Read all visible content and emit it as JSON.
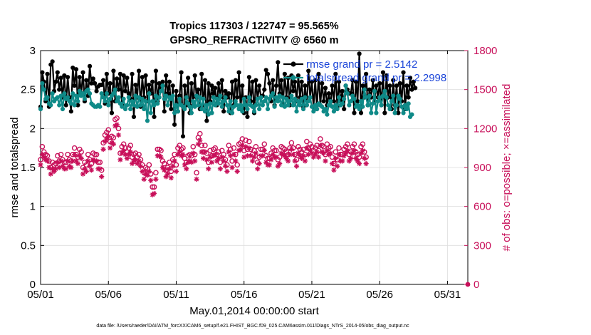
{
  "chart_data": {
    "type": "line",
    "title_line1": "Tropics 117303 / 122747 = 95.565%",
    "title_line2": "GPSRO_REFRACTIVITY @ 6560 m",
    "xlabel": "May.01,2014 00:00:00 start",
    "ylabel_left": "rmse and totalspread",
    "ylabel_right": "# of obs: o=possible; ×=assimilated",
    "xlim": [
      0,
      31.5
    ],
    "ylim_left": [
      0,
      3
    ],
    "ylim_right": [
      0,
      1800
    ],
    "x_ticks": [
      {
        "value": 0,
        "label": "05/01"
      },
      {
        "value": 5,
        "label": "05/06"
      },
      {
        "value": 10,
        "label": "05/11"
      },
      {
        "value": 15,
        "label": "05/16"
      },
      {
        "value": 20,
        "label": "05/21"
      },
      {
        "value": 25,
        "label": "05/26"
      },
      {
        "value": 30,
        "label": "05/31"
      }
    ],
    "y_ticks_left": [
      {
        "value": 0,
        "label": "0"
      },
      {
        "value": 0.5,
        "label": "0.5"
      },
      {
        "value": 1,
        "label": "1"
      },
      {
        "value": 1.5,
        "label": "1.5"
      },
      {
        "value": 2,
        "label": "2"
      },
      {
        "value": 2.5,
        "label": "2.5"
      },
      {
        "value": 3,
        "label": "3"
      }
    ],
    "y_ticks_right": [
      {
        "value": 0,
        "label": "0"
      },
      {
        "value": 300,
        "label": "300"
      },
      {
        "value": 600,
        "label": "600"
      },
      {
        "value": 900,
        "label": "900"
      },
      {
        "value": 1200,
        "label": "1200"
      },
      {
        "value": 1500,
        "label": "1500"
      },
      {
        "value": 1800,
        "label": "1800"
      }
    ],
    "x_step_days": 0.125,
    "series": [
      {
        "name": "rmse",
        "legend": "rmse grand pr = 2.5142",
        "axis": "left",
        "color": "#000000",
        "marker": "filled-circle",
        "values": [
          2.28,
          2.72,
          2.6,
          2.35,
          2.7,
          2.28,
          2.82,
          2.86,
          2.48,
          2.6,
          2.72,
          2.5,
          2.65,
          2.4,
          2.68,
          2.3,
          2.66,
          2.4,
          2.22,
          2.78,
          2.55,
          2.76,
          2.3,
          2.66,
          2.45,
          2.72,
          2.35,
          2.62,
          2.42,
          2.8,
          2.58,
          2.64,
          2.58,
          2.48,
          2.54,
          2.56,
          2.56,
          2.62,
          2.32,
          2.7,
          2.45,
          2.58,
          2.2,
          2.74,
          2.35,
          2.64,
          2.5,
          2.7,
          2.3,
          2.68,
          2.48,
          2.65,
          2.45,
          2.38,
          2.7,
          2.15,
          2.56,
          2.4,
          2.74,
          2.28,
          2.66,
          2.4,
          2.68,
          2.35,
          2.56,
          2.45,
          2.6,
          2.15,
          2.74,
          2.35,
          2.58,
          2.5,
          2.6,
          2.22,
          2.68,
          2.45,
          2.6,
          2.25,
          2.55,
          2.05,
          2.48,
          2.22,
          2.42,
          2.72,
          1.9,
          2.55,
          2.3,
          2.65,
          2.2,
          2.58,
          2.3,
          2.68,
          2.4,
          2.5,
          2.25,
          2.7,
          2.3,
          2.62,
          2.1,
          2.58,
          2.35,
          2.55,
          2.45,
          2.52,
          2.3,
          2.58,
          2.4,
          2.62,
          2.22,
          2.48,
          2.4,
          2.45,
          2.2,
          2.6,
          2.3,
          2.62,
          2.4,
          2.72,
          2.25,
          2.55,
          2.2,
          2.4,
          2.15,
          2.66,
          2.35,
          2.6,
          2.2,
          2.62,
          2.38,
          2.55,
          2.4,
          2.42,
          2.5,
          2.75,
          2.7,
          2.58,
          2.35,
          2.62,
          2.3,
          2.55,
          2.85,
          2.45,
          2.62,
          2.3,
          2.7,
          2.4,
          2.65,
          2.3,
          2.68,
          2.48,
          2.6,
          2.35,
          2.68,
          2.4,
          2.6,
          2.28,
          2.55,
          2.3,
          2.74,
          2.4,
          2.6,
          2.28,
          2.62,
          2.25,
          2.7,
          2.3,
          2.58,
          2.35,
          2.52,
          2.3,
          2.45,
          2.3,
          2.55,
          2.35,
          2.7,
          2.28,
          2.6,
          2.35,
          2.48,
          2.25,
          2.55,
          2.5,
          2.45,
          2.45,
          2.62,
          2.2,
          2.6,
          2.35,
          2.96,
          2.2,
          2.55,
          2.4,
          2.7,
          2.3,
          2.5,
          2.4,
          2.62,
          2.35,
          2.55,
          2.4,
          2.58,
          2.3,
          2.72,
          2.2,
          2.68,
          2.4,
          2.55,
          2.25,
          2.62,
          2.3,
          2.55,
          2.2,
          2.58,
          2.35,
          2.72,
          2.25,
          2.55,
          2.4,
          2.65,
          2.5,
          2.6,
          2.52
        ]
      },
      {
        "name": "totalspread",
        "legend": "totalspread grand pr = 2.2998",
        "axis": "left",
        "color": "#0f8a88",
        "marker": "filled-circle",
        "values": [
          2.25,
          2.58,
          2.5,
          2.38,
          2.4,
          2.32,
          2.3,
          2.45,
          2.35,
          2.38,
          2.4,
          2.3,
          2.42,
          2.25,
          2.45,
          2.38,
          2.4,
          2.35,
          2.32,
          2.45,
          2.3,
          2.42,
          2.35,
          2.48,
          2.42,
          2.45,
          2.38,
          2.48,
          2.5,
          2.45,
          2.32,
          2.3,
          2.28,
          2.28,
          2.3,
          2.28,
          2.45,
          2.4,
          2.35,
          2.45,
          2.3,
          2.38,
          2.42,
          2.45,
          2.5,
          2.35,
          2.4,
          2.32,
          2.28,
          2.38,
          2.25,
          2.3,
          2.4,
          2.25,
          2.35,
          2.3,
          2.42,
          2.28,
          2.4,
          2.3,
          2.38,
          2.25,
          2.35,
          2.1,
          2.45,
          2.2,
          2.35,
          2.3,
          2.42,
          2.32,
          2.4,
          2.48,
          2.55,
          2.38,
          2.42,
          2.3,
          2.4,
          2.38,
          2.42,
          2.2,
          2.3,
          2.22,
          2.38,
          2.3,
          2.28,
          2.25,
          2.4,
          2.32,
          2.28,
          2.2,
          2.35,
          2.28,
          2.42,
          2.3,
          2.4,
          2.25,
          2.38,
          2.22,
          2.3,
          2.18,
          2.32,
          2.2,
          2.4,
          2.3,
          2.38,
          2.32,
          2.42,
          2.28,
          2.35,
          2.4,
          2.3,
          2.22,
          2.35,
          2.2,
          2.28,
          2.35,
          2.3,
          2.25,
          2.3,
          2.22,
          2.38,
          2.3,
          2.25,
          2.4,
          2.3,
          2.28,
          2.22,
          2.3,
          2.38,
          2.25,
          2.4,
          2.3,
          2.35,
          2.4,
          2.25,
          2.38,
          2.42,
          2.45,
          2.28,
          2.4,
          2.35,
          2.42,
          2.3,
          2.4,
          2.28,
          2.38,
          2.3,
          2.35,
          2.42,
          2.3,
          2.38,
          2.22,
          2.35,
          2.3,
          2.38,
          2.25,
          2.4,
          2.3,
          2.35,
          2.4,
          2.28,
          2.22,
          2.3,
          2.25,
          2.32,
          2.3,
          2.28,
          2.22,
          2.25,
          2.18,
          2.3,
          2.35,
          2.28,
          2.22,
          2.3,
          2.25,
          2.4,
          2.3,
          2.32,
          2.38,
          2.55,
          2.45,
          2.3,
          2.35,
          2.42,
          2.38,
          2.28,
          2.3,
          2.25,
          2.35,
          2.28,
          2.5,
          2.4,
          2.3,
          2.42,
          2.2,
          2.32,
          2.48,
          2.2,
          2.35,
          2.4,
          2.3,
          2.42,
          2.48,
          2.4,
          2.3,
          2.25,
          2.35,
          2.42,
          2.2,
          2.3,
          2.42,
          2.38,
          2.28,
          2.2,
          2.3,
          2.25,
          2.32,
          2.15,
          2.18
        ]
      },
      {
        "name": "obs_possible",
        "legend": "o=possible",
        "axis": "right",
        "color": "#c8105a",
        "marker": "open-circle",
        "values": [
          960,
          1060,
          1020,
          1000,
          990,
          950,
          900,
          940,
          920,
          930,
          990,
          950,
          1000,
          960,
          940,
          940,
          1000,
          960,
          950,
          1000,
          1050,
          1000,
          980,
          1040,
          1020,
          900,
          940,
          920,
          1000,
          960,
          930,
          1010,
          1000,
          1000,
          940,
          940,
          880,
          1090,
          1150,
          1170,
          1190,
          1100,
          1140,
          1130,
          1270,
          1280,
          1200,
          1010,
          1060,
          1080,
          1050,
          1020,
          1050,
          1070,
          980,
          1000,
          1010,
          980,
          1000,
          960,
          920,
          860,
          900,
          890,
          920,
          850,
          750,
          750,
          860,
          1040,
          1040,
          1030,
          950,
          930,
          880,
          900,
          940,
          870,
          960,
          1000,
          920,
          1050,
          1070,
          1040,
          1050,
          970,
          940,
          990,
          1000,
          990,
          1060,
          1000,
          860,
          1130,
          1160,
          1070,
          1020,
          1070,
          1010,
          940,
          1030,
          990,
          1040,
          1050,
          1000,
          1020,
          940,
          1030,
          1000,
          960,
          920,
          1070,
          1040,
          950,
          1050,
          1000,
          920,
          1080,
          1090,
          1120,
          1030,
          1110,
          1040,
          1100,
          1040,
          1000,
          1030,
          1060,
          940,
          980,
          1040,
          1040,
          1080,
          990,
          970,
          970,
          1010,
          1050,
          1030,
          1030,
          960,
          980,
          1060,
          1050,
          1040,
          1020,
          1000,
          1050,
          1090,
          1050,
          1000,
          960,
          1060,
          1040,
          1020,
          1040,
          1000,
          1100,
          1050,
          1080,
          1060,
          1030,
          1050,
          1070,
          1030,
          1120,
          1070,
          1060,
          1000,
          1080,
          1050,
          1060,
          980,
          930,
          1020,
          960,
          1050,
          1000,
          1000,
          1040,
          1060,
          1080,
          1000,
          1020,
          1060,
          1080,
          1020,
          1000,
          980,
          1060,
          1080,
          1020,
          980
        ]
      },
      {
        "name": "obs_assimilated",
        "legend": "×=assimilated",
        "axis": "right",
        "color": "#c8105a",
        "marker": "star",
        "values": [
          920,
          1000,
          980,
          960,
          950,
          900,
          850,
          890,
          870,
          890,
          940,
          900,
          950,
          910,
          890,
          890,
          950,
          910,
          900,
          950,
          1000,
          950,
          930,
          990,
          970,
          850,
          890,
          870,
          950,
          910,
          880,
          960,
          950,
          950,
          890,
          890,
          830,
          1040,
          1100,
          1120,
          1140,
          1050,
          1090,
          1080,
          1220,
          1230,
          1150,
          960,
          1010,
          1030,
          1000,
          970,
          1000,
          1020,
          930,
          950,
          960,
          930,
          950,
          910,
          870,
          810,
          850,
          840,
          870,
          800,
          690,
          700,
          810,
          990,
          990,
          980,
          900,
          880,
          830,
          850,
          890,
          820,
          910,
          950,
          870,
          1000,
          1020,
          990,
          1000,
          920,
          890,
          940,
          950,
          940,
          1010,
          950,
          810,
          1080,
          1110,
          1020,
          970,
          1020,
          960,
          890,
          980,
          940,
          990,
          1000,
          950,
          970,
          890,
          980,
          950,
          910,
          870,
          1020,
          990,
          900,
          1000,
          950,
          870,
          1030,
          1040,
          1070,
          980,
          1060,
          990,
          1050,
          990,
          950,
          980,
          1010,
          890,
          930,
          990,
          990,
          1030,
          940,
          920,
          920,
          960,
          1000,
          980,
          980,
          910,
          930,
          1010,
          1000,
          990,
          970,
          950,
          1000,
          1040,
          1000,
          950,
          910,
          1010,
          990,
          970,
          990,
          950,
          1050,
          1000,
          1030,
          1010,
          980,
          1000,
          1020,
          980,
          1070,
          1020,
          1010,
          950,
          1030,
          1000,
          1010,
          930,
          880,
          970,
          910,
          1000,
          950,
          950,
          990,
          1010,
          1030,
          950,
          970,
          1010,
          1030,
          970,
          950,
          930,
          1010,
          1030,
          970,
          930
        ]
      }
    ],
    "edge_marker": {
      "x": 31.5,
      "y_right": 0,
      "marker": "filled-circle"
    }
  },
  "footer": "data file: /Users/raeder/DAI/ATM_forcXX/CAM6_setup/f.e21.FHIST_BGC.f09_025.CAM6assim.011/Diags_NTrS_2014-05/obs_diag_output.nc",
  "colors": {
    "rmse": "#000000",
    "spread": "#0f8a88",
    "obs": "#c8105a",
    "legend_text": "#1a44d8",
    "grid": "#dedede"
  }
}
